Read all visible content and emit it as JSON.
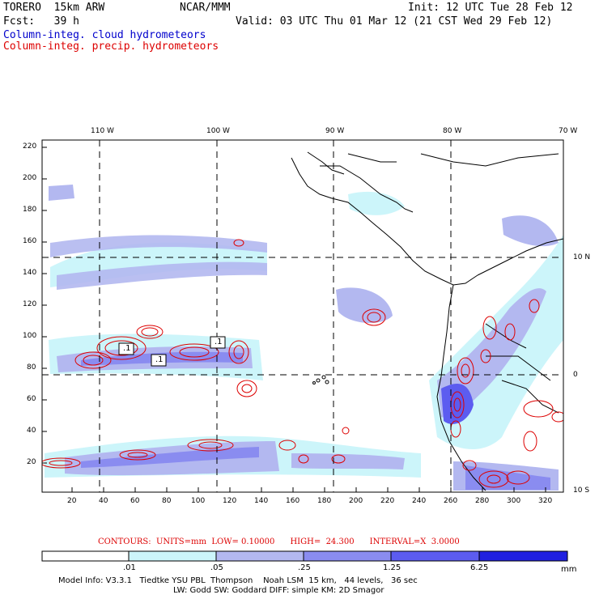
{
  "header": {
    "model": "TORERO  15km ARW",
    "center": "NCAR/MMM",
    "init": "Init: 12 UTC Tue 28 Feb 12",
    "fcst": "Fcst:   39 h",
    "valid": "Valid: 03 UTC Thu 01 Mar 12 (21 CST Wed 29 Feb 12)",
    "field_blue": "Column-integ. cloud hydrometeors",
    "field_red": "Column-integ. precip. hydrometeors"
  },
  "axes": {
    "top_lon": [
      "110 W",
      "100 W",
      "90 W",
      "80 W",
      "70 W"
    ],
    "right_lat": [
      "10 N",
      "0",
      "10 S"
    ],
    "left_ticks": [
      "220",
      "200",
      "180",
      "160",
      "140",
      "120",
      "100",
      "80",
      "60",
      "40",
      "20"
    ],
    "bottom_ticks": [
      "20",
      "40",
      "60",
      "80",
      "100",
      "120",
      "140",
      "160",
      "180",
      "200",
      "220",
      "240",
      "260",
      "280",
      "300",
      "320"
    ]
  },
  "contour_labels": [
    ".1",
    ".1",
    ".1"
  ],
  "contour_info": "CONTOURS:  UNITS=mm  LOW= 0.10000      HIGH=  24.300      INTERVAL=X  3.0000",
  "colorbar": {
    "levels": [
      ".01",
      ".05",
      ".25",
      "1.25",
      "6.25"
    ],
    "unit": "mm",
    "colors": [
      "#ffffff",
      "#ccf5fa",
      "#b3b8f0",
      "#8a8cf0",
      "#5c5cf0",
      "#2020e0"
    ]
  },
  "footer": {
    "line1": "Model Info: V3.3.1   Tiedtke YSU PBL  Thompson    Noah LSM  15 km,   44 levels,   36 sec",
    "line2": "LW: Godd SW: Goddard DIFF: simple KM: 2D Smagor"
  }
}
